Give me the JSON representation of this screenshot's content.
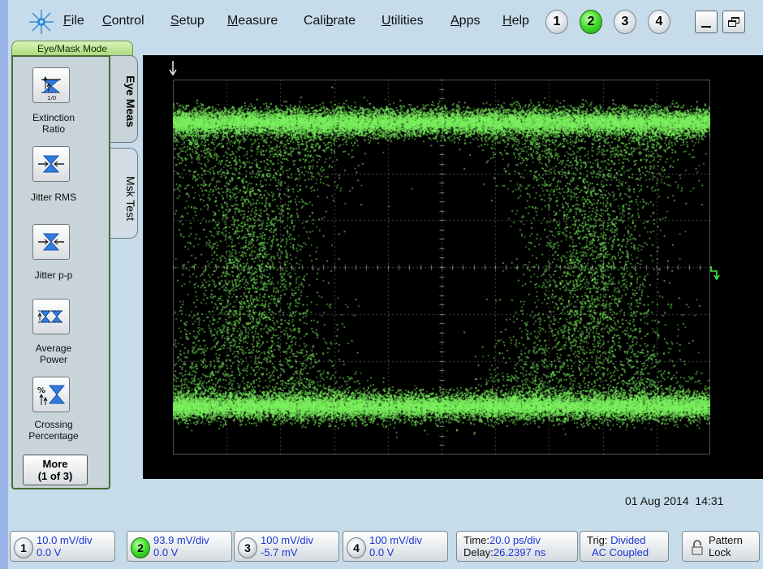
{
  "menu": {
    "items": [
      {
        "label": "File",
        "mnemonic": "F",
        "rest": "ile"
      },
      {
        "label": "Control",
        "mnemonic": "C",
        "rest": "ontrol"
      },
      {
        "label": "Setup",
        "mnemonic": "S",
        "rest": "etup"
      },
      {
        "label": "Measure",
        "mnemonic": "M",
        "rest": "easure"
      },
      {
        "label": "Calibrate",
        "pre": "Cali",
        "mnemonic": "b",
        "rest": "rate"
      },
      {
        "label": "Utilities",
        "mnemonic": "U",
        "rest": "tilities"
      },
      {
        "label": "Apps",
        "mnemonic": "A",
        "rest": "pps"
      },
      {
        "label": "Help",
        "mnemonic": "H",
        "rest": "elp"
      }
    ],
    "channel_buttons": [
      "1",
      "2",
      "3",
      "4"
    ],
    "active_channel": "2"
  },
  "mode": "Eye/Mask Mode",
  "tabs": {
    "eye_meas": "Eye Meas",
    "msk_test": "Msk Test"
  },
  "measurements": [
    {
      "label_lines": [
        "Extinction",
        "Ratio"
      ],
      "icon": "extinction-ratio-icon"
    },
    {
      "label_lines": [
        "Jitter RMS"
      ],
      "icon": "jitter-rms-icon"
    },
    {
      "label_lines": [
        "Jitter p-p"
      ],
      "icon": "jitter-pp-icon"
    },
    {
      "label_lines": [
        "Average",
        "Power"
      ],
      "icon": "average-power-icon"
    },
    {
      "label_lines": [
        "Crossing",
        "Percentage"
      ],
      "icon": "crossing-percentage-icon"
    }
  ],
  "icon_small_text": "1/0",
  "more": {
    "line1": "More",
    "line2": "(1 of 3)"
  },
  "timestamp": {
    "date": "01 Aug 2014",
    "time": "14:31"
  },
  "channels": [
    {
      "num": "1",
      "scale": "10.0 mV/div",
      "offset": "0.0 V"
    },
    {
      "num": "2",
      "scale": "93.9 mV/div",
      "offset": "0.0 V"
    },
    {
      "num": "3",
      "scale": "100 mV/div",
      "offset": "-5.7 mV"
    },
    {
      "num": "4",
      "scale": "100 mV/div",
      "offset": "0.0 V"
    }
  ],
  "timebase": {
    "time_label": "Time:",
    "time": "20.0 ps/div",
    "delay_label": "Delay:",
    "delay": "26.2397 ns"
  },
  "trigger": {
    "label": "Trig:",
    "source": "Divided",
    "coupling": "AC Coupled"
  },
  "pattern_lock": {
    "line1": "Pattern",
    "line2": "Lock"
  },
  "colors": {
    "trace": "#7cf25f",
    "screen": "#000000",
    "accent_green": "#45e02e"
  }
}
